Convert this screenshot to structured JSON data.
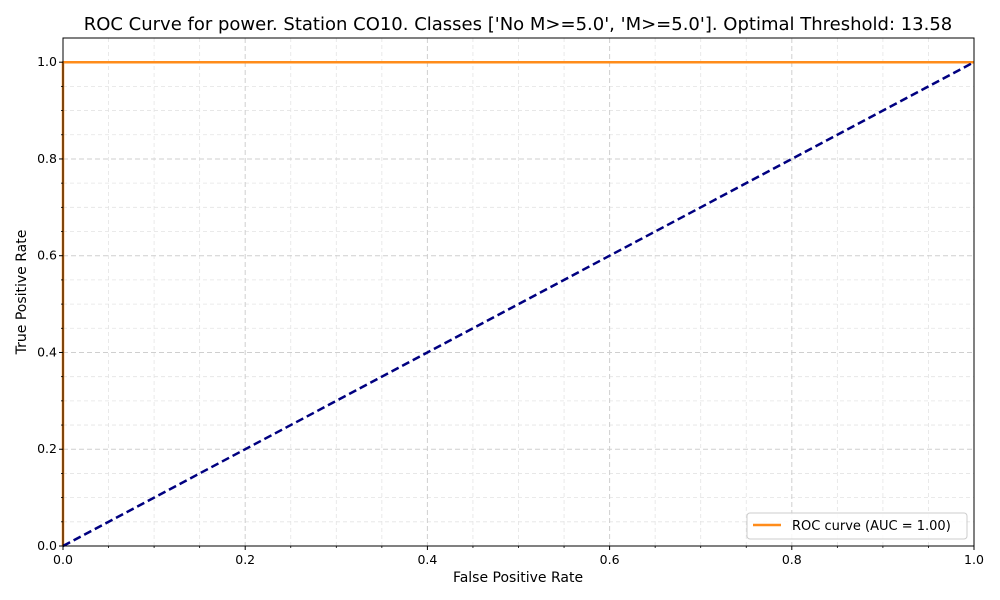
{
  "chart_data": {
    "type": "line",
    "title": "ROC Curve for power. Station CO10. Classes ['No M>=5.0', 'M>=5.0']. Optimal Threshold: 13.58",
    "xlabel": "False Positive Rate",
    "ylabel": "True Positive Rate",
    "xlim": [
      0.0,
      1.0
    ],
    "ylim": [
      0.0,
      1.05
    ],
    "x_ticks": [
      0.0,
      0.2,
      0.4,
      0.6,
      0.8,
      1.0
    ],
    "y_ticks": [
      0.0,
      0.2,
      0.4,
      0.6,
      0.8,
      1.0
    ],
    "x_tick_labels": [
      "0.0",
      "0.2",
      "0.4",
      "0.6",
      "0.8",
      "1.0"
    ],
    "y_tick_labels": [
      "0.0",
      "0.2",
      "0.4",
      "0.6",
      "0.8",
      "1.0"
    ],
    "grid": true,
    "minor_grid": true,
    "legend_position": "lower-right",
    "series": [
      {
        "name": "ROC curve (AUC = 1.00)",
        "color": "#ff8c1a",
        "style": "solid",
        "x": [
          0.0,
          0.0,
          1.0
        ],
        "y": [
          0.0,
          1.0,
          1.0
        ]
      },
      {
        "color": "#000080",
        "style": "dashed",
        "x": [
          0.0,
          1.0
        ],
        "y": [
          0.0,
          1.0
        ]
      }
    ]
  }
}
